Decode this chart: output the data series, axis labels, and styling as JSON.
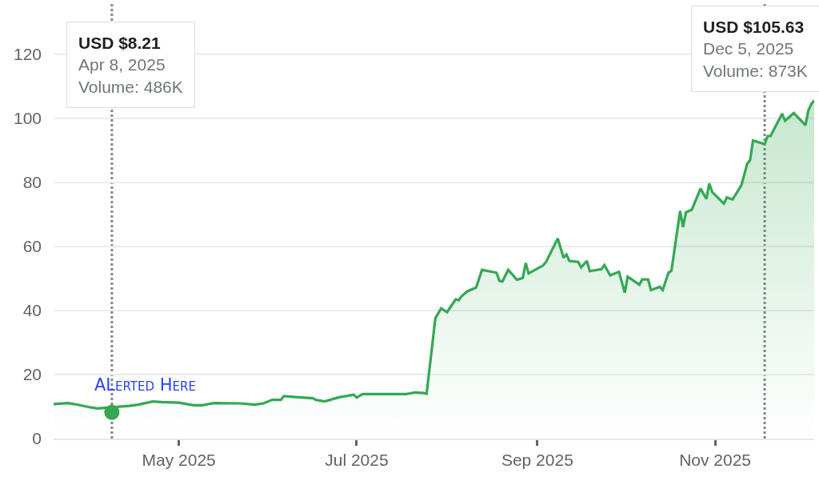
{
  "chart_data": {
    "type": "area",
    "x": [
      "2025-03-19",
      "2025-03-24",
      "2025-03-26",
      "2025-04-01",
      "2025-04-03",
      "2025-04-14",
      "2025-04-17",
      "2025-04-22",
      "2025-04-25",
      "2025-05-01",
      "2025-05-06",
      "2025-05-09",
      "2025-05-13",
      "2025-05-22",
      "2025-05-27",
      "2025-05-30",
      "2025-06-02",
      "2025-06-05",
      "2025-06-06",
      "2025-06-11",
      "2025-06-16",
      "2025-06-17",
      "2025-06-20",
      "2025-06-23",
      "2025-06-25",
      "2025-06-30",
      "2025-07-01",
      "2025-07-03",
      "2025-07-14",
      "2025-07-18",
      "2025-07-21",
      "2025-07-24",
      "2025-07-25",
      "2025-07-28",
      "2025-07-30",
      "2025-08-01",
      "2025-08-04",
      "2025-08-05",
      "2025-08-06",
      "2025-08-08",
      "2025-08-11",
      "2025-08-13",
      "2025-08-18",
      "2025-08-19",
      "2025-08-20",
      "2025-08-22",
      "2025-08-25",
      "2025-08-27",
      "2025-08-28",
      "2025-08-29",
      "2025-09-03",
      "2025-09-04",
      "2025-09-08",
      "2025-09-10",
      "2025-09-11",
      "2025-09-12",
      "2025-09-15",
      "2025-09-16",
      "2025-09-18",
      "2025-09-19",
      "2025-09-23",
      "2025-09-24",
      "2025-09-26",
      "2025-09-29",
      "2025-10-01",
      "2025-10-02",
      "2025-10-06",
      "2025-10-07",
      "2025-10-09",
      "2025-10-10",
      "2025-10-13",
      "2025-10-14",
      "2025-10-16",
      "2025-10-17",
      "2025-10-20",
      "2025-10-21",
      "2025-10-22",
      "2025-10-24",
      "2025-10-27",
      "2025-10-29",
      "2025-10-30",
      "2025-10-31",
      "2025-11-04",
      "2025-11-05",
      "2025-11-07",
      "2025-11-10",
      "2025-11-12",
      "2025-11-13",
      "2025-11-14",
      "2025-11-18",
      "2025-11-19",
      "2025-11-20",
      "2025-11-24",
      "2025-11-25",
      "2025-11-28",
      "2025-12-02",
      "2025-12-03",
      "2025-12-04",
      "2025-12-05"
    ],
    "series": [
      {
        "color": "#34a853",
        "marker": "none",
        "values": [
          10.8,
          11.1,
          10.8,
          9.7,
          9.4,
          10.2,
          10.6,
          11.6,
          11.4,
          11.2,
          10.4,
          10.4,
          11.1,
          11.0,
          10.6,
          11.0,
          12.1,
          12.1,
          13.3,
          12.9,
          12.6,
          12.1,
          11.6,
          12.4,
          12.9,
          13.7,
          12.8,
          13.9,
          13.9,
          13.9,
          14.4,
          14.2,
          14.0,
          37.6,
          40.7,
          39.5,
          43.5,
          43.2,
          44.5,
          46.0,
          47.2,
          52.7,
          51.8,
          49.3,
          49.1,
          52.7,
          49.6,
          50.2,
          54.8,
          51.6,
          54.1,
          55.2,
          62.5,
          56.5,
          57.5,
          55.5,
          55.2,
          53.5,
          55.5,
          52.3,
          52.9,
          54.2,
          51.0,
          52.1,
          45.6,
          50.6,
          48.1,
          49.7,
          49.7,
          46.4,
          47.4,
          46.4,
          51.8,
          52.4,
          71.1,
          66.1,
          70.7,
          71.5,
          78.1,
          74.9,
          79.7,
          77.0,
          73.4,
          75.3,
          74.7,
          79.1,
          85.8,
          87.0,
          93.1,
          92.0,
          94.5,
          94.5,
          101.5,
          99.3,
          101.7,
          97.9,
          102.5,
          104.5,
          105.63
        ]
      },
      {
        "type": "scatter",
        "color": "#34a853",
        "marker": "circle",
        "x": [
          "2025-04-08"
        ],
        "values": [
          8.21
        ]
      }
    ],
    "xlim": [
      "2025-03-19",
      "2025-12-05"
    ],
    "xticks": [
      {
        "value": "2025-05-01",
        "label": "May 2025"
      },
      {
        "value": "2025-07-01",
        "label": "Jul 2025"
      },
      {
        "value": "2025-09-01",
        "label": "Sep 2025"
      },
      {
        "value": "2025-11-01",
        "label": "Nov 2025"
      }
    ],
    "ylim": [
      0,
      136
    ],
    "yticks": [
      0,
      20,
      40,
      60,
      80,
      100,
      120
    ],
    "grid": "y",
    "ref_lines": [
      {
        "axis": "x",
        "value": "2025-04-08",
        "label": null,
        "color": "#80868b",
        "line_style": "dotted"
      },
      {
        "axis": "x",
        "value": "2025-11-18",
        "label": null,
        "color": "#80868b",
        "line_style": "dotted"
      }
    ],
    "annotations": [
      "USD $8.21\nApr 8, 2025\nVolume: 486K",
      "USD $105.63\nDec 5, 2025\nVolume: 873K",
      {
        "text": "ALerted Here",
        "x": "2025-04-08",
        "y": 8.21
      }
    ]
  }
}
